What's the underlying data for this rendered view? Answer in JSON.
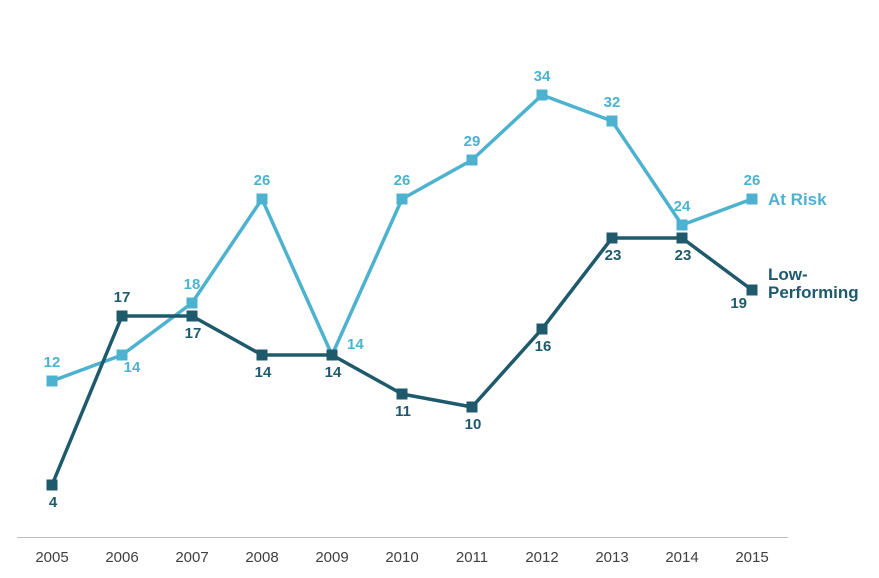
{
  "chart_data": {
    "type": "line",
    "title": "",
    "xlabel": "",
    "ylabel": "",
    "categories": [
      "2005",
      "2006",
      "2007",
      "2008",
      "2009",
      "2010",
      "2011",
      "2012",
      "2013",
      "2014",
      "2015"
    ],
    "series": [
      {
        "name": "At Risk",
        "values": [
          12,
          14,
          18,
          26,
          14,
          26,
          29,
          34,
          32,
          24,
          26
        ],
        "color": "#4DB2CF",
        "marker": "square",
        "legend_lines": [
          "At Risk"
        ],
        "label_positions": [
          "above",
          "below-right",
          "above",
          "above",
          "right",
          "above",
          "above",
          "above",
          "above",
          "above",
          "above"
        ]
      },
      {
        "name": "Low-Performing",
        "values": [
          4,
          17,
          17,
          14,
          14,
          11,
          10,
          16,
          23,
          23,
          19
        ],
        "color": "#1E5A6B",
        "marker": "square",
        "legend_lines": [
          "Low-",
          "Performing"
        ],
        "label_positions": [
          "below",
          "above",
          "below",
          "below",
          "below",
          "below",
          "below",
          "below",
          "below",
          "below",
          "below-left"
        ]
      }
    ],
    "ylim": [
      0,
      38
    ],
    "grid": false,
    "y_axis_visible": false,
    "data_labels_visible": true,
    "legend_position": "right-of-last-point",
    "axis_line_color": "#BFBFBF",
    "tick_label_color": "#404040",
    "background_color": "#FFFFFF"
  }
}
